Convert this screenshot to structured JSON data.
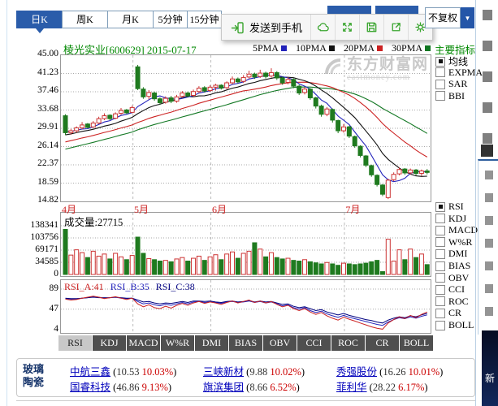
{
  "toolbar": {
    "period_tabs": [
      {
        "label": "日K",
        "selected": true
      },
      {
        "label": "周K",
        "selected": false
      },
      {
        "label": "月K",
        "selected": false
      },
      {
        "label": "5分钟",
        "selected": false
      },
      {
        "label": "15分钟",
        "selected": false
      }
    ],
    "send_to_phone_label": "发送到手机",
    "action_icons": [
      "cloud-icon",
      "expand-icon",
      "save-icon",
      "share-icon",
      "settings-icon"
    ],
    "adjust_dropdown": {
      "value": "不复权"
    }
  },
  "chart_header": {
    "title": "棱光实业[600629] 2015-07-17",
    "legend": [
      {
        "label": "5PMA",
        "color": "#2222bb"
      },
      {
        "label": "10PMA",
        "color": "#111111"
      },
      {
        "label": "20PMA",
        "color": "#cc2222"
      },
      {
        "label": "30PMA",
        "color": "#117722"
      }
    ],
    "watermark_main": "东方财富网",
    "watermark_sub": "eastmoney.com"
  },
  "indicator_panel": {
    "title": "主要指标",
    "overlay_options": [
      {
        "label": "均线",
        "checked": true
      },
      {
        "label": "EXPMA",
        "checked": false
      },
      {
        "label": "SAR",
        "checked": false
      },
      {
        "label": "BBI",
        "checked": false
      }
    ],
    "oscillator_options": [
      {
        "label": "RSI",
        "checked": true
      },
      {
        "label": "KDJ",
        "checked": false
      },
      {
        "label": "MACD",
        "checked": false
      },
      {
        "label": "W%R",
        "checked": false
      },
      {
        "label": "DMI",
        "checked": false
      },
      {
        "label": "BIAS",
        "checked": false
      },
      {
        "label": "OBV",
        "checked": false
      },
      {
        "label": "CCI",
        "checked": false
      },
      {
        "label": "ROC",
        "checked": false
      },
      {
        "label": "CR",
        "checked": false
      },
      {
        "label": "BOLL",
        "checked": false
      }
    ]
  },
  "indicator_tabs": {
    "selected": "RSI",
    "items": [
      "RSI",
      "KDJ",
      "MACD",
      "W%R",
      "DMI",
      "BIAS",
      "OBV",
      "CCI",
      "ROC",
      "CR",
      "BOLL"
    ]
  },
  "footer": {
    "category": [
      "玻璃",
      "陶瓷"
    ],
    "stocks": [
      {
        "name": "中航三鑫",
        "price": "10.53",
        "pct": "10.03%"
      },
      {
        "name": "三峡新材",
        "price": "9.88",
        "pct": "10.02%"
      },
      {
        "name": "秀强股份",
        "price": "16.26",
        "pct": "10.01%"
      },
      {
        "name": "国睿科技",
        "price": "46.86",
        "pct": "9.13%"
      },
      {
        "name": "旗滨集团",
        "price": "8.66",
        "pct": "6.52%"
      },
      {
        "name": "菲利华",
        "price": "28.22",
        "pct": "6.17%"
      }
    ]
  },
  "right_edge": {
    "ad_text": "新"
  },
  "chart_data": [
    {
      "type": "candlestick",
      "title": "棱光实业[600629] 2015-07-17",
      "y_ticks": [
        "45.00",
        "41.23",
        "37.46",
        "33.68",
        "29.91",
        "26.14",
        "22.37",
        "18.59",
        "14.82"
      ],
      "y_range": [
        14.82,
        45.0
      ],
      "months": [
        {
          "label": "4月",
          "start": 0
        },
        {
          "label": "5月",
          "start": 13
        },
        {
          "label": "6月",
          "start": 27
        },
        {
          "label": "7月",
          "start": 51
        }
      ],
      "colors": {
        "up": "#cc3333",
        "down": "#1f7a1f"
      },
      "ohlc": [
        [
          32.5,
          32.8,
          28.5,
          29.0
        ],
        [
          29.0,
          29.8,
          28.6,
          29.4
        ],
        [
          29.4,
          30.3,
          29.0,
          30.0
        ],
        [
          30.0,
          31.2,
          29.7,
          30.6
        ],
        [
          30.8,
          31.0,
          29.9,
          30.1
        ],
        [
          30.2,
          31.4,
          30.0,
          31.0
        ],
        [
          31.0,
          32.3,
          30.8,
          31.9
        ],
        [
          31.9,
          33.0,
          31.6,
          32.5
        ],
        [
          32.6,
          32.8,
          31.6,
          31.9
        ],
        [
          32.0,
          33.2,
          31.8,
          32.9
        ],
        [
          33.0,
          34.1,
          32.7,
          33.6
        ],
        [
          33.7,
          33.9,
          32.9,
          33.1
        ],
        [
          33.2,
          34.6,
          33.0,
          34.2
        ],
        [
          42.6,
          43.0,
          37.8,
          38.1
        ],
        [
          38.0,
          38.4,
          36.0,
          36.4
        ],
        [
          36.5,
          37.8,
          35.9,
          37.3
        ],
        [
          37.2,
          37.5,
          35.6,
          36.0
        ],
        [
          36.0,
          36.3,
          34.8,
          35.2
        ],
        [
          35.3,
          36.5,
          35.0,
          36.1
        ],
        [
          36.2,
          36.6,
          35.1,
          35.5
        ],
        [
          35.5,
          36.8,
          35.2,
          36.4
        ],
        [
          36.5,
          37.6,
          36.2,
          37.2
        ],
        [
          37.2,
          37.5,
          36.3,
          36.6
        ],
        [
          36.7,
          37.9,
          36.4,
          37.5
        ],
        [
          37.5,
          38.6,
          37.2,
          38.2
        ],
        [
          38.3,
          38.6,
          37.3,
          37.6
        ],
        [
          37.7,
          38.8,
          37.4,
          38.4
        ],
        [
          38.4,
          39.1,
          37.7,
          38.8
        ],
        [
          38.8,
          39.0,
          37.9,
          38.2
        ],
        [
          38.3,
          39.6,
          38.0,
          39.3
        ],
        [
          39.3,
          40.6,
          39.0,
          40.1
        ],
        [
          40.1,
          40.4,
          39.2,
          39.5
        ],
        [
          39.6,
          40.9,
          39.3,
          40.4
        ],
        [
          40.5,
          41.8,
          40.2,
          41.1
        ],
        [
          41.1,
          41.4,
          40.1,
          40.5
        ],
        [
          40.6,
          42.0,
          40.3,
          41.3
        ],
        [
          41.3,
          41.6,
          40.2,
          40.6
        ],
        [
          40.7,
          42.3,
          40.4,
          41.4
        ],
        [
          41.4,
          41.7,
          39.9,
          40.3
        ],
        [
          40.3,
          40.6,
          38.9,
          39.3
        ],
        [
          39.4,
          40.5,
          39.0,
          40.0
        ],
        [
          40.0,
          40.2,
          38.2,
          38.6
        ],
        [
          38.6,
          38.9,
          36.8,
          37.2
        ],
        [
          37.3,
          38.4,
          36.9,
          38.0
        ],
        [
          38.0,
          38.2,
          35.8,
          36.2
        ],
        [
          36.2,
          36.4,
          34.0,
          34.5
        ],
        [
          34.5,
          34.8,
          32.3,
          32.8
        ],
        [
          32.8,
          34.3,
          32.4,
          33.9
        ],
        [
          33.8,
          34.0,
          31.1,
          31.6
        ],
        [
          31.5,
          31.7,
          28.9,
          29.4
        ],
        [
          29.4,
          30.8,
          29.0,
          30.2
        ],
        [
          30.2,
          30.4,
          27.9,
          28.3
        ],
        [
          28.2,
          28.4,
          25.9,
          26.3
        ],
        [
          26.2,
          26.4,
          23.9,
          24.3
        ],
        [
          24.2,
          24.4,
          21.9,
          22.3
        ],
        [
          22.2,
          22.4,
          19.9,
          20.3
        ],
        [
          20.2,
          20.4,
          17.9,
          18.3
        ],
        [
          18.2,
          18.4,
          15.9,
          16.3
        ],
        [
          15.6,
          19.5,
          15.3,
          19.2
        ],
        [
          19.3,
          20.8,
          19.0,
          20.4
        ],
        [
          20.5,
          21.8,
          20.2,
          21.4
        ],
        [
          21.5,
          21.7,
          20.3,
          20.7
        ],
        [
          20.7,
          21.6,
          20.4,
          21.3
        ],
        [
          21.3,
          21.5,
          20.2,
          20.6
        ],
        [
          20.6,
          21.4,
          20.1,
          21.1
        ],
        [
          21.1,
          21.5,
          20.4,
          20.8
        ]
      ],
      "ma": {
        "periods": [
          30,
          20,
          10,
          5
        ],
        "colors": {
          "5": "#2222bb",
          "10": "#111111",
          "20": "#cc2222",
          "30": "#117722"
        },
        "seed": [
          21.0,
          21.3,
          21.6,
          21.9,
          22.2,
          22.5,
          22.8,
          23.1,
          23.4,
          23.7,
          24.0,
          24.3,
          24.6,
          24.9,
          25.2,
          25.5,
          25.8,
          26.1,
          26.4,
          26.7,
          27.0,
          27.3,
          27.6,
          27.9,
          28.2,
          28.5,
          28.8,
          29.1,
          29.4,
          29.7
        ]
      }
    },
    {
      "type": "bar",
      "title": "成交量:27715",
      "y_ticks": [
        "138341",
        "103756",
        "69171",
        "34585",
        "0"
      ],
      "y_max": 138341,
      "values": [
        128000,
        55000,
        70000,
        62000,
        48000,
        66000,
        52000,
        58000,
        44000,
        60000,
        50000,
        42000,
        54000,
        106000,
        60000,
        45000,
        42000,
        38000,
        40000,
        36000,
        44000,
        48000,
        38000,
        46000,
        52000,
        40000,
        50000,
        56000,
        42000,
        58000,
        64000,
        46000,
        60000,
        66000,
        90000,
        72000,
        50000,
        62000,
        48000,
        44000,
        46000,
        40000,
        38000,
        42000,
        36000,
        33000,
        30000,
        34000,
        30000,
        26000,
        32000,
        30000,
        28000,
        30000,
        32000,
        36000,
        40000,
        8000,
        100000,
        38000,
        70000,
        42000,
        72000,
        48000,
        58000,
        28000
      ]
    },
    {
      "type": "line",
      "labels": [
        {
          "text": "RSI_A:41",
          "color": "#cc2222"
        },
        {
          "text": "RSI_B:35",
          "color": "#2222bb"
        },
        {
          "text": "RSI_C:38",
          "color": "#000080"
        }
      ],
      "y_ticks": [
        "89",
        "47",
        "4"
      ],
      "y_range": [
        4,
        89
      ],
      "series": [
        {
          "name": "RSI_B",
          "color": "#2222bb",
          "values": [
            69,
            68,
            68,
            70,
            71,
            73,
            72,
            70,
            71,
            72,
            70,
            69,
            70,
            63,
            58,
            60,
            56,
            54,
            57,
            55,
            58,
            61,
            58,
            62,
            63,
            61,
            62,
            61,
            59,
            62,
            63,
            61,
            62,
            64,
            61,
            63,
            60,
            62,
            58,
            54,
            56,
            50,
            47,
            50,
            44,
            40,
            43,
            37,
            33,
            30,
            34,
            30,
            27,
            24,
            21,
            18,
            15,
            13,
            20,
            25,
            29,
            27,
            31,
            28,
            32,
            35
          ]
        },
        {
          "name": "RSI_C",
          "color": "#000080",
          "values": [
            70,
            69,
            69,
            70,
            71,
            72,
            71,
            71,
            71,
            72,
            71,
            70,
            70,
            66,
            62,
            63,
            60,
            58,
            60,
            59,
            61,
            63,
            61,
            64,
            64,
            63,
            64,
            62,
            61,
            63,
            64,
            62,
            63,
            65,
            62,
            64,
            62,
            63,
            60,
            57,
            58,
            53,
            50,
            52,
            48,
            44,
            46,
            41,
            38,
            35,
            38,
            34,
            31,
            28,
            25,
            23,
            20,
            18,
            24,
            28,
            31,
            29,
            33,
            31,
            35,
            38
          ]
        },
        {
          "name": "RSI_A",
          "color": "#cc2222",
          "values": [
            68,
            66,
            67,
            70,
            72,
            74,
            72,
            69,
            71,
            73,
            70,
            67,
            70,
            58,
            52,
            56,
            50,
            48,
            53,
            49,
            55,
            59,
            55,
            60,
            63,
            59,
            62,
            60,
            57,
            61,
            64,
            60,
            63,
            66,
            61,
            64,
            60,
            63,
            57,
            52,
            55,
            48,
            44,
            48,
            41,
            36,
            40,
            33,
            28,
            24,
            30,
            26,
            22,
            18,
            14,
            10,
            7,
            5,
            18,
            25,
            31,
            27,
            34,
            29,
            36,
            41
          ]
        }
      ]
    }
  ]
}
